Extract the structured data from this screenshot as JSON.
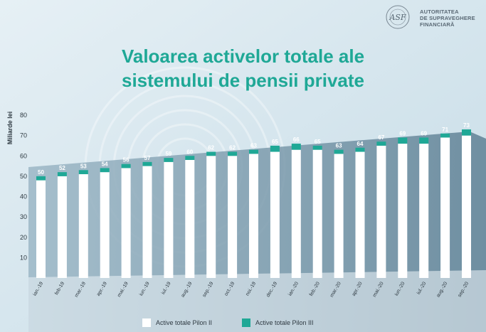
{
  "header": {
    "logo_lines": [
      "AUTORITATEA",
      "DE SUPRAVEGHERE",
      "FINANCIARĂ"
    ],
    "logo_monogram": "ASF",
    "logo_seal_text": "ROMÂNIA · AUTORITATEA DE SUPRAVEGHERE FINANCIARĂ"
  },
  "title": {
    "line1": "Valoarea activelor totale ale",
    "line2": "sistemului de pensii private"
  },
  "colors": {
    "title": "#1fa896",
    "pilon2": "#ffffff",
    "pilon3": "#1fa896",
    "label": "#ffffff",
    "axis_text": "#2f3a42"
  },
  "chart_data": {
    "type": "bar",
    "stacked": true,
    "categories": [
      "ian.-19",
      "feb-19",
      "mar.-19",
      "apr.-19",
      "mai.-19",
      "iun.-19",
      "iul.-19",
      "aug.-19",
      "sep.-19",
      "oct.-19",
      "noi.-19",
      "dec.-19",
      "ian.-20",
      "feb.-20",
      "mar.-20",
      "apr.-20",
      "mai.-20",
      "iun.-20",
      "iul.-20",
      "aug.-20",
      "sep.-20"
    ],
    "series": [
      {
        "name": "Active totale Pilon II",
        "values": [
          48,
          50,
          51,
          52,
          54,
          55,
          57,
          58,
          60,
          60,
          61,
          62,
          63,
          63,
          61,
          62,
          65,
          66,
          66,
          69,
          70
        ]
      },
      {
        "name": "Active totale Pilon III",
        "values": [
          2,
          2,
          2,
          2,
          2,
          2,
          2,
          2,
          2,
          2,
          2,
          3,
          3,
          2,
          2,
          2,
          2,
          3,
          3,
          2,
          3
        ]
      }
    ],
    "totals_labels": [
      "50",
      "52",
      "53",
      "54",
      "56",
      "57",
      "59",
      "60",
      "62",
      "62",
      "63",
      "65",
      "66",
      "65",
      "63",
      "64",
      "67",
      "69",
      "69",
      "71",
      "73"
    ],
    "ylabel": "Miliarde lei",
    "xlabel": "",
    "ylim": [
      0,
      80
    ],
    "yticks": [
      "10",
      "20",
      "30",
      "40",
      "50",
      "60",
      "70",
      "80"
    ],
    "legend_position": "bottom-center",
    "grid": false
  }
}
